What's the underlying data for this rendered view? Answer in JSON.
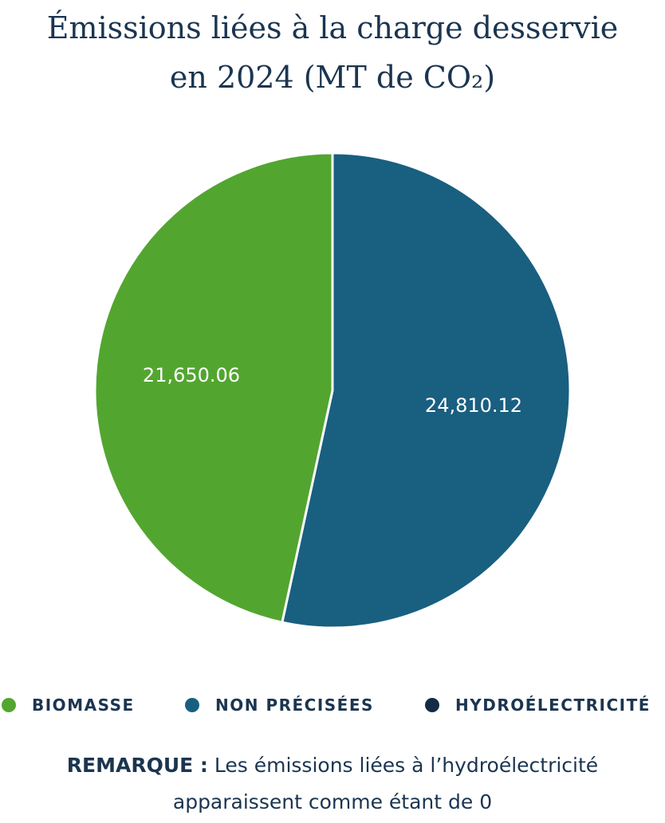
{
  "chart_data": {
    "type": "pie",
    "title_lines": [
      "Émissions liées à la charge desservie",
      "en 2024 (MT de CO₂)"
    ],
    "slices": [
      {
        "name": "NON PRÉCISÉES",
        "value": 24810.12,
        "label": "24,810.12",
        "color": "#195f80"
      },
      {
        "name": "BIOMASSE",
        "value": 21650.06,
        "label": "21,650.06",
        "color": "#52a62f"
      },
      {
        "name": "HYDROÉLECTRICITÉ",
        "value": 0,
        "label": "",
        "color": "#142c45"
      }
    ],
    "legend": [
      {
        "label": "BIOMASSE",
        "color": "#52a62f"
      },
      {
        "label": "NON PRÉCISÉES",
        "color": "#195f80"
      },
      {
        "label": "HYDROÉLECTRICITÉ",
        "color": "#142c45"
      }
    ],
    "legend_position": "bottom"
  },
  "note": {
    "label": "REMARQUE :",
    "text_line1": " Les émissions liées à l’hydroélectricité",
    "text_line2": "apparaissent comme étant de 0"
  }
}
